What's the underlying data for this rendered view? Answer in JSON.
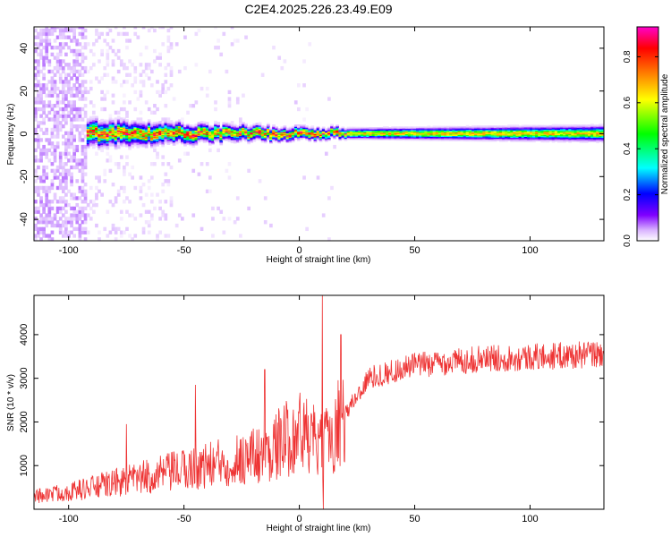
{
  "title": "C2E4.2025.226.23.49.E09",
  "chart_data": [
    {
      "type": "heatmap",
      "xlabel": "Height of straight line (km)",
      "ylabel": "Frequency (Hz)",
      "xlim": [
        -115,
        132
      ],
      "ylim": [
        -50,
        50
      ],
      "xticks": [
        -100,
        -50,
        0,
        50,
        100
      ],
      "yticks": [
        -40,
        -20,
        0,
        20,
        40
      ],
      "colorbar": {
        "label": "Normalized spectral amplitude",
        "range": [
          0,
          0.93
        ],
        "ticks": [
          0.0,
          0.2,
          0.4,
          0.6,
          0.8
        ],
        "colormap": [
          "#ffffff",
          "#d9b3ff",
          "#7f00ff",
          "#0000ff",
          "#00ffff",
          "#00ff00",
          "#ffff00",
          "#ff8000",
          "#ff0000",
          "#ff00cc"
        ]
      },
      "ridge": {
        "center_frequency": 0,
        "clutter_region_end": -55,
        "broad_region_end": 20,
        "halfwidth_hz": [
          {
            "x": -93,
            "value": 5
          },
          {
            "x": -30,
            "value": 3
          },
          {
            "x": 20,
            "value": 2
          },
          {
            "x": 132,
            "value": 3
          }
        ]
      }
    },
    {
      "type": "line",
      "xlabel": "Height of straight line (km)",
      "ylabel": "SNR (10 * v/v)",
      "xlim": [
        -115,
        132
      ],
      "ylim": [
        0,
        4900
      ],
      "xticks": [
        -100,
        -50,
        0,
        50,
        100
      ],
      "yticks": [
        1000,
        2000,
        3000,
        4000
      ],
      "color": "#ee3333",
      "envelope": [
        {
          "x": -115,
          "y": 300
        },
        {
          "x": -100,
          "y": 400
        },
        {
          "x": -80,
          "y": 600
        },
        {
          "x": -50,
          "y": 900
        },
        {
          "x": -30,
          "y": 1100
        },
        {
          "x": -15,
          "y": 1300
        },
        {
          "x": 0,
          "y": 1800
        },
        {
          "x": 10,
          "y": 1400
        },
        {
          "x": 20,
          "y": 2200
        },
        {
          "x": 30,
          "y": 3000
        },
        {
          "x": 50,
          "y": 3300
        },
        {
          "x": 80,
          "y": 3450
        },
        {
          "x": 132,
          "y": 3550
        }
      ],
      "spikes": [
        {
          "x": 10,
          "y": 4900
        },
        {
          "x": -45,
          "y": 2850
        },
        {
          "x": -75,
          "y": 1950
        },
        {
          "x": -15,
          "y": 3200
        },
        {
          "x": 18,
          "y": 4000
        }
      ]
    }
  ]
}
